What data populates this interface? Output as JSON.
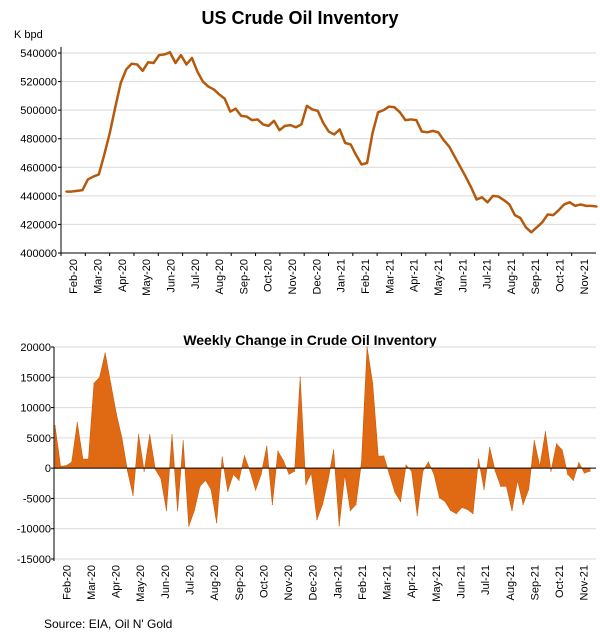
{
  "chart_data": [
    {
      "type": "line",
      "title": "US Crude Oil Inventory",
      "ylabel": "K bpd",
      "ylim": [
        400000,
        540000
      ],
      "yticks": [
        "400000",
        "420000",
        "440000",
        "460000",
        "480000",
        "500000",
        "520000",
        "540000"
      ],
      "xlabels": [
        "Feb-20",
        "Mar-20",
        "Apr-20",
        "May-20",
        "Jun-20",
        "Jul-20",
        "Aug-20",
        "Sep-20",
        "Oct-20",
        "Nov-20",
        "Dec-20",
        "Jan-21",
        "Feb-21",
        "Mar-21",
        "Apr-21",
        "May-21",
        "Jun-21",
        "Jul-21",
        "Aug-21",
        "Sep-21",
        "Oct-21",
        "Nov-21"
      ],
      "color": "#b55a0c",
      "values": [
        443000,
        443000,
        443500,
        444000,
        451500,
        453500,
        455000,
        469000,
        484000,
        502000,
        519000,
        528500,
        532500,
        532000,
        527500,
        533500,
        533000,
        538500,
        539000,
        540500,
        533000,
        538500,
        532000,
        536500,
        527000,
        520000,
        516500,
        514500,
        511000,
        508000,
        499000,
        501000,
        496000,
        495500,
        493000,
        493500,
        490000,
        489000,
        492500,
        486000,
        489000,
        489500,
        488000,
        490000,
        503000,
        500500,
        499500,
        491000,
        485000,
        483000,
        486500,
        477000,
        476000,
        468500,
        462000,
        463000,
        484000,
        498500,
        500000,
        502500,
        502000,
        498500,
        493000,
        493500,
        493000,
        485000,
        484500,
        485500,
        484500,
        479000,
        474500,
        467500,
        460500,
        453500,
        446000,
        437500,
        439000,
        435500,
        440000,
        439500,
        437000,
        434000,
        426500,
        424500,
        418000,
        414500,
        418000,
        421500,
        427000,
        426500,
        430000,
        434000,
        435500,
        433000,
        434000,
        433000,
        433000,
        432500
      ]
    },
    {
      "type": "area",
      "title": "Weekly Change in Crude Oil Inventory",
      "ylim": [
        -15000,
        20000
      ],
      "yticks": [
        "20000",
        "15000",
        "10000",
        "5000",
        "0",
        "-5000",
        "-10000",
        "-15000"
      ],
      "xlabels": [
        "Feb-20",
        "Mar-20",
        "Apr-20",
        "May-20",
        "Jun-20",
        "Jul-20",
        "Aug-20",
        "Sep-20",
        "Oct-20",
        "Nov-20",
        "Dec-20",
        "Jan-21",
        "Feb-21",
        "Mar-21",
        "Apr-21",
        "May-21",
        "Jun-21",
        "Jul-21",
        "Aug-21",
        "Sep-21",
        "Oct-21",
        "Nov-21"
      ],
      "color": "#e06a14",
      "values": [
        7000,
        300,
        400,
        1000,
        7500,
        1500,
        1500,
        14000,
        15000,
        19000,
        14000,
        9000,
        5000,
        -400,
        -4500,
        5500,
        -500,
        5500,
        -200,
        -1700,
        -7000,
        5500,
        -7000,
        4500,
        -9600,
        -7000,
        -3000,
        -2000,
        -3500,
        -9000,
        1800,
        -3800,
        -1000,
        -2000,
        2000,
        -500,
        -3600,
        -1000,
        3600,
        -6000,
        2800,
        1200,
        -1000,
        -500,
        15000,
        -2700,
        -800,
        -8500,
        -6000,
        -2000,
        3000,
        -9500,
        -1000,
        -7000,
        -6000,
        1000,
        20000,
        14000,
        2000,
        2000,
        -1000,
        -4000,
        -5500,
        500,
        -500,
        -7800,
        -500,
        1000,
        -1000,
        -4900,
        -5500,
        -7000,
        -7500,
        -6500,
        -6800,
        -7500,
        1500,
        -3500,
        3400,
        -500,
        -3000,
        -3000,
        -7000,
        -2000,
        -6000,
        -3500,
        4500,
        300,
        6000,
        -500,
        4000,
        3000,
        -1000,
        -2000,
        900,
        -800,
        -500
      ]
    }
  ],
  "footer": {
    "source": "Source: EIA, Oil N' Gold"
  }
}
